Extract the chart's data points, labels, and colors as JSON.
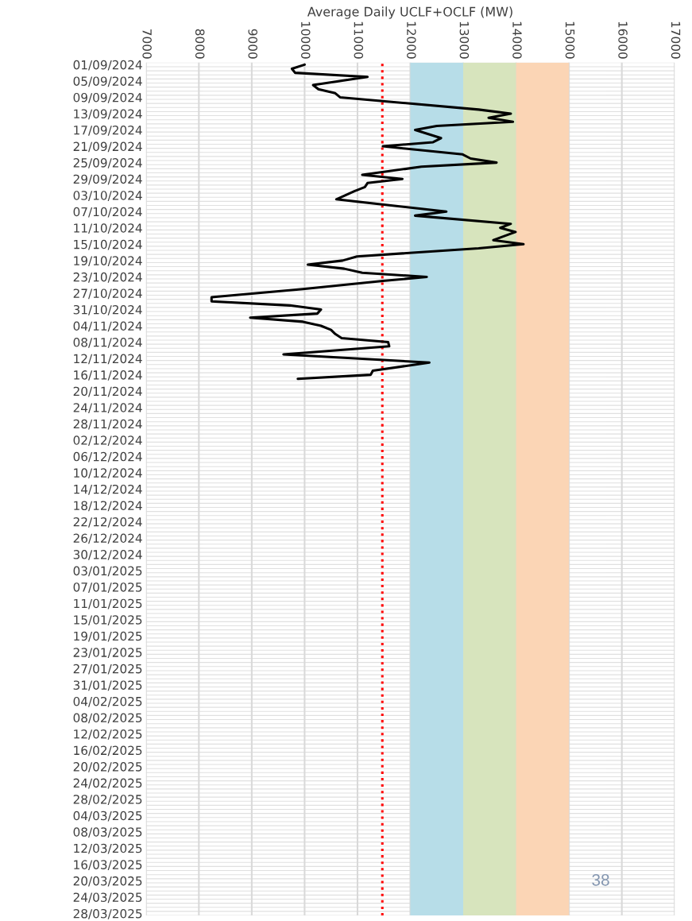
{
  "chart_data": {
    "type": "line",
    "orientation": "horizontal",
    "xlabel": "Average Daily UCLF+OCLF (MW)",
    "series": [
      {
        "color": "#000000",
        "x": [
          "2024-09-01",
          "2024-09-02",
          "2024-09-03",
          "2024-09-04",
          "2024-09-06",
          "2024-09-07",
          "2024-09-08",
          "2024-09-09",
          "2024-09-12",
          "2024-09-13",
          "2024-09-14",
          "2024-09-15",
          "2024-09-16",
          "2024-09-17",
          "2024-09-19",
          "2024-09-20",
          "2024-09-21",
          "2024-09-23",
          "2024-09-24",
          "2024-09-25",
          "2024-09-26",
          "2024-09-28",
          "2024-09-29",
          "2024-09-30",
          "2024-10-01",
          "2024-10-02",
          "2024-10-04",
          "2024-10-07",
          "2024-10-08",
          "2024-10-10",
          "2024-10-11",
          "2024-10-12",
          "2024-10-14",
          "2024-10-15",
          "2024-10-16",
          "2024-10-18",
          "2024-10-19",
          "2024-10-20",
          "2024-10-21",
          "2024-10-22",
          "2024-10-23",
          "2024-10-24",
          "2024-10-26",
          "2024-10-28",
          "2024-10-29",
          "2024-10-30",
          "2024-10-31",
          "2024-11-01",
          "2024-11-02",
          "2024-11-03",
          "2024-11-04",
          "2024-11-05",
          "2024-11-06",
          "2024-11-07",
          "2024-11-08",
          "2024-11-09",
          "2024-11-11",
          "2024-11-13",
          "2024-11-15",
          "2024-11-16",
          "2024-11-17"
        ],
        "values": [
          10000,
          9760,
          9820,
          11190,
          10160,
          10260,
          10580,
          10670,
          13290,
          13900,
          13480,
          13940,
          12500,
          12090,
          12580,
          12430,
          11480,
          12990,
          13140,
          13630,
          12210,
          11090,
          11850,
          11190,
          11140,
          10940,
          10600,
          12680,
          12090,
          13900,
          13700,
          13990,
          13570,
          14140,
          13290,
          10990,
          10720,
          10060,
          10750,
          11090,
          12310,
          11480,
          9970,
          8240,
          8240,
          9720,
          10310,
          10240,
          8970,
          9970,
          10310,
          10500,
          10580,
          10700,
          11580,
          11600,
          9600,
          12360,
          11290,
          11250,
          9870
        ]
      }
    ],
    "xlim": [
      7000,
      17000
    ],
    "xticks": [
      7000,
      8000,
      9000,
      10000,
      11000,
      12000,
      13000,
      14000,
      15000,
      16000,
      17000
    ],
    "ylim": [
      "2025-03-28T12:00",
      "2024-08-31T12:00"
    ],
    "yticks": [
      {
        "value": "2024-09-01",
        "label": "01/09/2024"
      },
      {
        "value": "2024-09-05",
        "label": "05/09/2024"
      },
      {
        "value": "2024-09-09",
        "label": "09/09/2024"
      },
      {
        "value": "2024-09-13",
        "label": "13/09/2024"
      },
      {
        "value": "2024-09-17",
        "label": "17/09/2024"
      },
      {
        "value": "2024-09-21",
        "label": "21/09/2024"
      },
      {
        "value": "2024-09-25",
        "label": "25/09/2024"
      },
      {
        "value": "2024-09-29",
        "label": "29/09/2024"
      },
      {
        "value": "2024-10-03",
        "label": "03/10/2024"
      },
      {
        "value": "2024-10-07",
        "label": "07/10/2024"
      },
      {
        "value": "2024-10-11",
        "label": "11/10/2024"
      },
      {
        "value": "2024-10-15",
        "label": "15/10/2024"
      },
      {
        "value": "2024-10-19",
        "label": "19/10/2024"
      },
      {
        "value": "2024-10-23",
        "label": "23/10/2024"
      },
      {
        "value": "2024-10-27",
        "label": "27/10/2024"
      },
      {
        "value": "2024-10-31",
        "label": "31/10/2024"
      },
      {
        "value": "2024-11-04",
        "label": "04/11/2024"
      },
      {
        "value": "2024-11-08",
        "label": "08/11/2024"
      },
      {
        "value": "2024-11-12",
        "label": "12/11/2024"
      },
      {
        "value": "2024-11-16",
        "label": "16/11/2024"
      },
      {
        "value": "2024-11-20",
        "label": "20/11/2024"
      },
      {
        "value": "2024-11-24",
        "label": "24/11/2024"
      },
      {
        "value": "2024-11-28",
        "label": "28/11/2024"
      },
      {
        "value": "2024-12-02",
        "label": "02/12/2024"
      },
      {
        "value": "2024-12-06",
        "label": "06/12/2024"
      },
      {
        "value": "2024-12-10",
        "label": "10/12/2024"
      },
      {
        "value": "2024-12-14",
        "label": "14/12/2024"
      },
      {
        "value": "2024-12-18",
        "label": "18/12/2024"
      },
      {
        "value": "2024-12-22",
        "label": "22/12/2024"
      },
      {
        "value": "2024-12-26",
        "label": "26/12/2024"
      },
      {
        "value": "2024-12-30",
        "label": "30/12/2024"
      },
      {
        "value": "2025-01-03",
        "label": "03/01/2025"
      },
      {
        "value": "2025-01-07",
        "label": "07/01/2025"
      },
      {
        "value": "2025-01-11",
        "label": "11/01/2025"
      },
      {
        "value": "2025-01-15",
        "label": "15/01/2025"
      },
      {
        "value": "2025-01-19",
        "label": "19/01/2025"
      },
      {
        "value": "2025-01-23",
        "label": "23/01/2025"
      },
      {
        "value": "2025-01-27",
        "label": "27/01/2025"
      },
      {
        "value": "2025-01-31",
        "label": "31/01/2025"
      },
      {
        "value": "2025-02-04",
        "label": "04/02/2025"
      },
      {
        "value": "2025-02-08",
        "label": "08/02/2025"
      },
      {
        "value": "2025-02-12",
        "label": "12/02/2025"
      },
      {
        "value": "2025-02-16",
        "label": "16/02/2025"
      },
      {
        "value": "2025-02-20",
        "label": "20/02/2025"
      },
      {
        "value": "2025-02-24",
        "label": "24/02/2025"
      },
      {
        "value": "2025-02-28",
        "label": "28/02/2025"
      },
      {
        "value": "2025-03-04",
        "label": "04/03/2025"
      },
      {
        "value": "2025-03-08",
        "label": "08/03/2025"
      },
      {
        "value": "2025-03-12",
        "label": "12/03/2025"
      },
      {
        "value": "2025-03-16",
        "label": "16/03/2025"
      },
      {
        "value": "2025-03-20",
        "label": "20/03/2025"
      },
      {
        "value": "2025-03-24",
        "label": "24/03/2025"
      },
      {
        "value": "2025-03-28",
        "label": "28/03/2025"
      }
    ],
    "grid": true,
    "line_style": "solid",
    "marker": "none",
    "ref_lines": [
      {
        "axis": "x",
        "value": 11470,
        "color": "#ff0000",
        "line_style": "dotted"
      }
    ],
    "bands": [
      {
        "axis": "x",
        "from": 12000,
        "to": 13000,
        "color": "#b7dde8"
      },
      {
        "axis": "x",
        "from": 13000,
        "to": 14000,
        "color": "#d7e4bd"
      },
      {
        "axis": "x",
        "from": 14000,
        "to": 15000,
        "color": "#fbd5b5"
      }
    ],
    "annotations": [
      "38"
    ]
  }
}
